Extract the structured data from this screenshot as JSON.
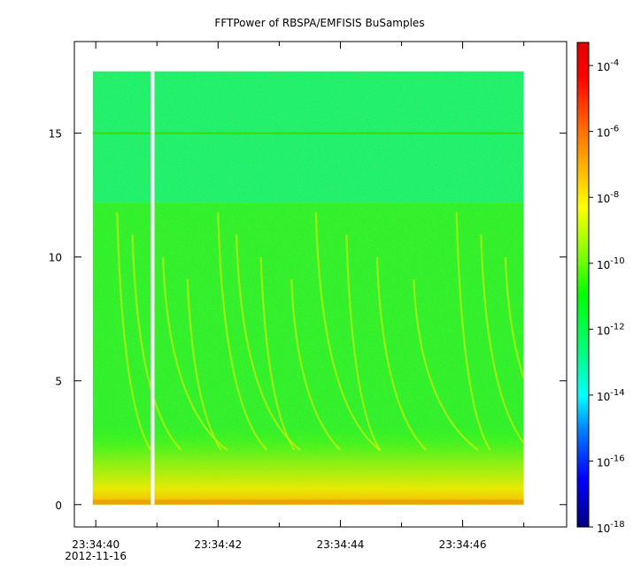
{
  "chart_data": {
    "type": "heatmap",
    "title": "FFTPower of RBSPA/EMFISIS  BuSamples",
    "y_ticks": [
      {
        "value": 0,
        "label": "0"
      },
      {
        "value": 5,
        "label": "5"
      },
      {
        "value": 10,
        "label": "10"
      },
      {
        "value": 15,
        "label": "15"
      }
    ],
    "ylim": [
      -0.9,
      18.7
    ],
    "x_ticks": [
      {
        "value": 0,
        "label": "23:34:40",
        "sublabel": "2012-11-16"
      },
      {
        "value": 2,
        "label": "23:34:42"
      },
      {
        "value": 4,
        "label": "23:34:44"
      },
      {
        "value": 6,
        "label": "23:34:46"
      }
    ],
    "x_minor_ticks": [
      1,
      3,
      5,
      7
    ],
    "xlim": [
      -0.35,
      7.7
    ],
    "data_extent": {
      "x_start": -0.05,
      "x_end": 7.0,
      "y_start": 0,
      "y_end": 17.5
    },
    "data_gap": {
      "x_start": 0.9,
      "x_end": 0.96
    },
    "horizontal_line": 15,
    "colorbar": {
      "scale": "log",
      "range": [
        -18,
        -3.3
      ],
      "ticks": [
        {
          "value": -4,
          "label": "10",
          "exponent": "-4"
        },
        {
          "value": -6,
          "label": "10",
          "exponent": "-6"
        },
        {
          "value": -8,
          "label": "10",
          "exponent": "-8"
        },
        {
          "value": -10,
          "label": "10",
          "exponent": "-10"
        },
        {
          "value": -12,
          "label": "10",
          "exponent": "-12"
        },
        {
          "value": -14,
          "label": "10",
          "exponent": "-14"
        },
        {
          "value": -16,
          "label": "10",
          "exponent": "-16"
        },
        {
          "value": -18,
          "label": "10",
          "exponent": "-18"
        }
      ],
      "colors": [
        "#00007f",
        "#0000ff",
        "#0080ff",
        "#00ffff",
        "#00ff80",
        "#00ff00",
        "#80ff00",
        "#ffff00",
        "#ff8000",
        "#ff0000",
        "#df0000"
      ]
    }
  }
}
